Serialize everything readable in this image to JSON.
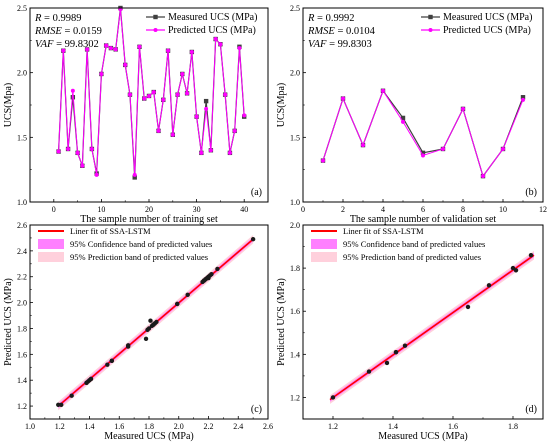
{
  "figure": {
    "description": ""
  },
  "colors": {
    "measured": "#404040",
    "predicted": "#ff00ff",
    "fit": "#ff0000",
    "confidence": "#ff80ff",
    "prediction": "#ffd0dc"
  },
  "chart_data": [
    {
      "id": "a",
      "type": "line",
      "panel_label": "(a)",
      "xlabel": "The sample number of training set",
      "ylabel": "UCS(Mpa)",
      "xlim": [
        -5,
        45
      ],
      "ylim": [
        1.0,
        2.5
      ],
      "xticks": [
        "0",
        "10",
        "20",
        "30",
        "40"
      ],
      "yticks": [
        "1.0",
        "1.5",
        "2.0",
        "2.5"
      ],
      "stats": [
        {
          "name": "R",
          "value": "= 0.9989"
        },
        {
          "name": "RMSE",
          "value": "= 0.0159"
        },
        {
          "name": "VAF",
          "value": "= 99.8302"
        }
      ],
      "legend": [
        "Measured UCS (MPa)",
        "Predicted UCS (MPa)"
      ],
      "x": [
        1,
        2,
        3,
        4,
        5,
        6,
        7,
        8,
        9,
        10,
        11,
        12,
        13,
        14,
        15,
        16,
        17,
        18,
        19,
        20,
        21,
        22,
        23,
        24,
        25,
        26,
        27,
        28,
        29,
        30,
        31,
        32,
        33,
        34,
        35,
        36,
        37,
        38,
        39,
        40
      ],
      "series": [
        {
          "name": "Measured UCS (MPa)",
          "values": [
            1.39,
            2.17,
            1.41,
            1.81,
            1.38,
            1.28,
            2.18,
            1.41,
            1.22,
            1.99,
            2.21,
            2.19,
            2.18,
            2.5,
            2.06,
            1.83,
            1.19,
            2.2,
            1.8,
            1.82,
            1.85,
            1.55,
            1.79,
            2.17,
            1.52,
            1.83,
            1.99,
            1.84,
            2.16,
            1.66,
            1.38,
            1.78,
            1.4,
            2.26,
            2.22,
            1.83,
            1.38,
            1.55,
            2.2,
            1.66
          ]
        },
        {
          "name": "Predicted UCS (MPa)",
          "values": [
            1.39,
            2.17,
            1.41,
            1.86,
            1.38,
            1.28,
            2.18,
            1.41,
            1.21,
            1.99,
            2.21,
            2.19,
            2.18,
            2.49,
            2.06,
            1.83,
            1.21,
            2.2,
            1.8,
            1.82,
            1.85,
            1.55,
            1.79,
            2.17,
            1.52,
            1.83,
            1.99,
            1.84,
            2.16,
            1.66,
            1.38,
            1.72,
            1.4,
            2.26,
            2.22,
            1.83,
            1.38,
            1.55,
            2.19,
            1.67
          ]
        }
      ]
    },
    {
      "id": "b",
      "type": "line",
      "panel_label": "(b)",
      "xlabel": "The sample number of validation set",
      "ylabel": "UCS(Mpa)",
      "xlim": [
        0,
        12
      ],
      "ylim": [
        1.0,
        2.5
      ],
      "xticks": [
        "0",
        "2",
        "4",
        "6",
        "8",
        "10",
        "12"
      ],
      "yticks": [
        "1.0",
        "1.5",
        "2.0",
        "2.5"
      ],
      "stats": [
        {
          "name": "R",
          "value": "= 0.9992"
        },
        {
          "name": "RMSE",
          "value": "= 0.0104"
        },
        {
          "name": "VAF",
          "value": "= 99.8303"
        }
      ],
      "legend": [
        "Measured UCS (MPa)",
        "Predicted UCS (MPa)"
      ],
      "x": [
        1,
        2,
        3,
        4,
        5,
        6,
        7,
        8,
        9,
        10,
        11
      ],
      "series": [
        {
          "name": "Measured UCS (MPa)",
          "values": [
            1.32,
            1.8,
            1.44,
            1.86,
            1.65,
            1.38,
            1.41,
            1.72,
            1.2,
            1.41,
            1.81
          ]
        },
        {
          "name": "Predicted UCS (MPa)",
          "values": [
            1.32,
            1.8,
            1.44,
            1.86,
            1.62,
            1.36,
            1.41,
            1.72,
            1.2,
            1.41,
            1.79
          ]
        }
      ]
    },
    {
      "id": "c",
      "type": "scatter",
      "panel_label": "(c)",
      "xlabel": "Measured UCS (MPa)",
      "ylabel": "Predicted UCS (MPa)",
      "xlim": [
        1.0,
        2.6
      ],
      "ylim": [
        1.1,
        2.6
      ],
      "xticks": [
        "1.0",
        "1.2",
        "1.4",
        "1.6",
        "1.8",
        "2.0",
        "2.2",
        "2.4",
        "2.6"
      ],
      "yticks": [
        "1.2",
        "1.4",
        "1.6",
        "1.8",
        "2.0",
        "2.2",
        "2.4",
        "2.6"
      ],
      "legend": [
        "Liner fit of SSA-LSTM",
        "95% Confidence band of predicted values",
        "95% Prediction band of predicted values"
      ],
      "fit_line": {
        "x": [
          1.19,
          2.5
        ],
        "y": [
          1.2,
          2.49
        ]
      },
      "points": {
        "x": [
          1.19,
          1.21,
          1.28,
          1.38,
          1.38,
          1.39,
          1.4,
          1.41,
          1.41,
          1.52,
          1.55,
          1.55,
          1.66,
          1.66,
          1.78,
          1.79,
          1.8,
          1.81,
          1.82,
          1.83,
          1.83,
          1.83,
          1.84,
          1.85,
          1.99,
          1.99,
          2.06,
          2.16,
          2.17,
          2.17,
          2.18,
          2.18,
          2.19,
          2.2,
          2.2,
          2.21,
          2.22,
          2.26,
          2.5
        ],
        "y": [
          1.21,
          1.21,
          1.28,
          1.38,
          1.38,
          1.39,
          1.4,
          1.41,
          1.41,
          1.52,
          1.55,
          1.55,
          1.66,
          1.67,
          1.72,
          1.79,
          1.8,
          1.86,
          1.82,
          1.83,
          1.83,
          1.83,
          1.84,
          1.85,
          1.99,
          1.99,
          2.06,
          2.16,
          2.17,
          2.17,
          2.18,
          2.18,
          2.19,
          2.19,
          2.2,
          2.21,
          2.22,
          2.26,
          2.49
        ]
      }
    },
    {
      "id": "d",
      "type": "scatter",
      "panel_label": "(d)",
      "xlabel": "Measured UCS (MPa)",
      "ylabel": "Predicted UCS (MPa)",
      "xlim": [
        1.1,
        1.9
      ],
      "ylim": [
        1.1,
        2.0
      ],
      "xticks": [
        "1.2",
        "1.4",
        "1.6",
        "1.8"
      ],
      "yticks": [
        "1.2",
        "1.4",
        "1.6",
        "1.8",
        "2.0"
      ],
      "legend": [
        "Liner fit of SSA-LSTM",
        "95% Confidence band of predicted values",
        "95% Prediction band of predicted values"
      ],
      "fit_line": {
        "x": [
          1.19,
          1.87
        ],
        "y": [
          1.19,
          1.86
        ]
      },
      "points": {
        "x": [
          1.2,
          1.32,
          1.38,
          1.41,
          1.41,
          1.44,
          1.65,
          1.72,
          1.8,
          1.81,
          1.86
        ],
        "y": [
          1.2,
          1.32,
          1.36,
          1.41,
          1.41,
          1.44,
          1.62,
          1.72,
          1.8,
          1.79,
          1.86
        ]
      }
    }
  ]
}
